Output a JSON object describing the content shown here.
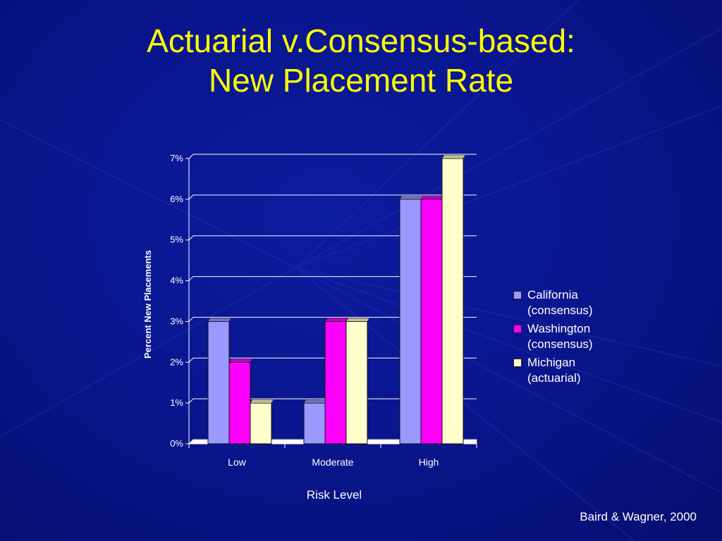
{
  "slide": {
    "title_line1": "Actuarial v.Consensus-based:",
    "title_line2": "New Placement Rate",
    "source": "Baird & Wagner, 2000"
  },
  "colors": {
    "title": "#ffff00",
    "background": "#0a1690"
  },
  "chart_data": {
    "type": "bar",
    "categories": [
      "Low",
      "Moderate",
      "High"
    ],
    "series": [
      {
        "name": "California (consensus)",
        "values": [
          3,
          1,
          6
        ],
        "color": "#9999ff"
      },
      {
        "name": "Washington (consensus)",
        "values": [
          2,
          3,
          6
        ],
        "color": "#ff00ff"
      },
      {
        "name": "Michigan (actuarial)",
        "values": [
          1,
          3,
          7
        ],
        "color": "#ffffcc"
      }
    ],
    "ylim": [
      0,
      7
    ],
    "yticks": [
      "0%",
      "1%",
      "2%",
      "3%",
      "4%",
      "5%",
      "6%",
      "7%"
    ],
    "ylabel": "Percent New Placements",
    "xlabel": "Risk Level",
    "legend_entries": [
      {
        "line1": "California",
        "line2": "(consensus)"
      },
      {
        "line1": "Washington",
        "line2": "(consensus)"
      },
      {
        "line1": "Michigan",
        "line2": "(actuarial)"
      }
    ],
    "legend_position": "right",
    "grid": true
  }
}
